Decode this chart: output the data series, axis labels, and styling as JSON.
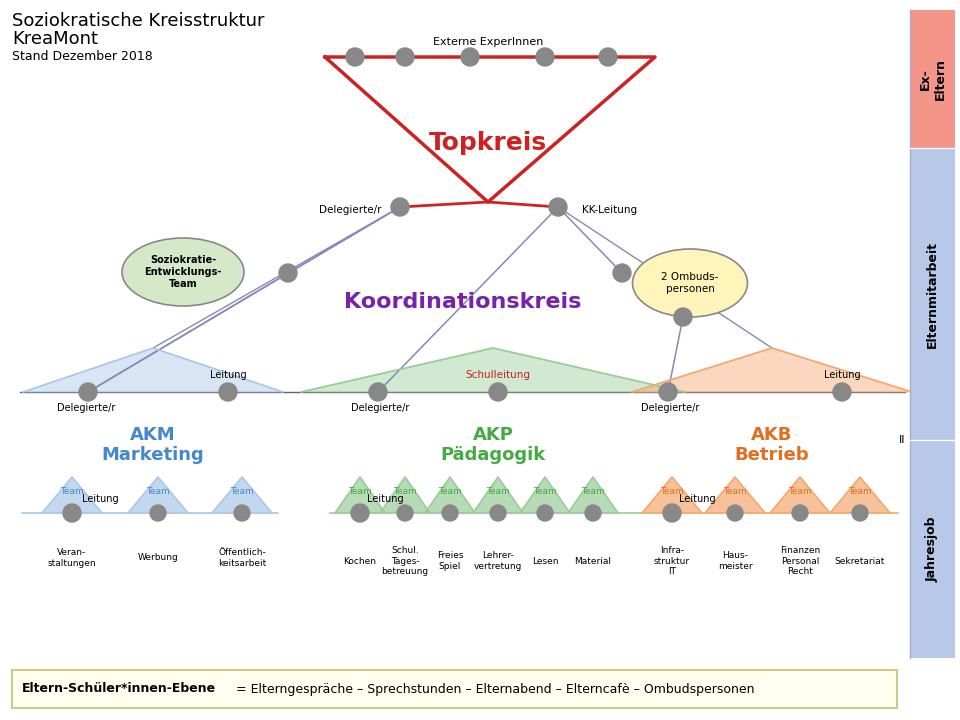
{
  "title_line1": "Soziokratische Kreisstruktur",
  "title_line2": "KreaMont",
  "title_line3": "Stand Dezember 2018",
  "bg_color": "#ffffff",
  "ex_eltern_color": "#f4958a",
  "elternmitarbeit_color": "#b8c8e8",
  "jahresjob_color": "#b8c8e8",
  "topkreis_color": "#cc2222",
  "koordination_color": "#7722aa",
  "akm_color": "#4488cc",
  "akm_fill": "#aac8e8",
  "akp_color": "#44aa44",
  "akp_fill": "#99cc99",
  "akb_color": "#e07020",
  "akb_fill": "#f4a870",
  "node_color": "#888888",
  "soz_fill": "#d5e8c8",
  "ombu_fill": "#fff5bb",
  "line_color": "#8888bb",
  "bottom_fill": "#fffff0",
  "bottom_border": "#cccc88",
  "bottom_text_bold": "Eltern-Schüler*innen-Ebene",
  "bottom_text_normal": " = Elterngespräche – Sprechstunden – Elternabend – Elterncafè – Ombudspersonen"
}
